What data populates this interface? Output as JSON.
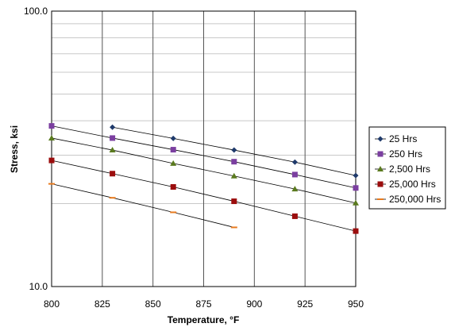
{
  "chart_data": {
    "type": "scatter",
    "title": "",
    "xlabel": "Temperature, °F",
    "ylabel": "Stress, ksi",
    "xlim": [
      800,
      950
    ],
    "ylim": [
      10,
      100
    ],
    "y_scale": "log",
    "x_ticks": [
      800,
      825,
      850,
      875,
      900,
      925,
      950
    ],
    "y_tick_labels": [
      "10.0",
      "100.0"
    ],
    "grid": true,
    "legend_position": "right",
    "series": [
      {
        "name": "25 Hrs",
        "color": "#1f3a6b",
        "marker": "diamond",
        "x": [
          830,
          860,
          890,
          920,
          950
        ],
        "y": [
          37.9,
          34.5,
          31.3,
          28.3,
          25.3
        ]
      },
      {
        "name": "250 Hrs",
        "color": "#7b3fa0",
        "marker": "square",
        "x": [
          800,
          830,
          860,
          890,
          920,
          950
        ],
        "y": [
          38.3,
          34.6,
          31.4,
          28.4,
          25.5,
          22.8
        ]
      },
      {
        "name": "2,500 Hrs",
        "color": "#5a7a1e",
        "marker": "triangle",
        "x": [
          800,
          830,
          860,
          890,
          920,
          950
        ],
        "y": [
          34.6,
          31.3,
          28.0,
          25.2,
          22.6,
          20.1
        ]
      },
      {
        "name": "25,000 Hrs",
        "color": "#9b0d0d",
        "marker": "square",
        "x": [
          800,
          830,
          860,
          890,
          920,
          950
        ],
        "y": [
          28.7,
          25.7,
          23.0,
          20.4,
          18.0,
          15.9
        ]
      },
      {
        "name": "250,000 Hrs",
        "color": "#e87a1e",
        "marker": "dash",
        "x": [
          800,
          830,
          860,
          890
        ],
        "y": [
          23.6,
          21.0,
          18.6,
          16.4
        ]
      }
    ]
  }
}
